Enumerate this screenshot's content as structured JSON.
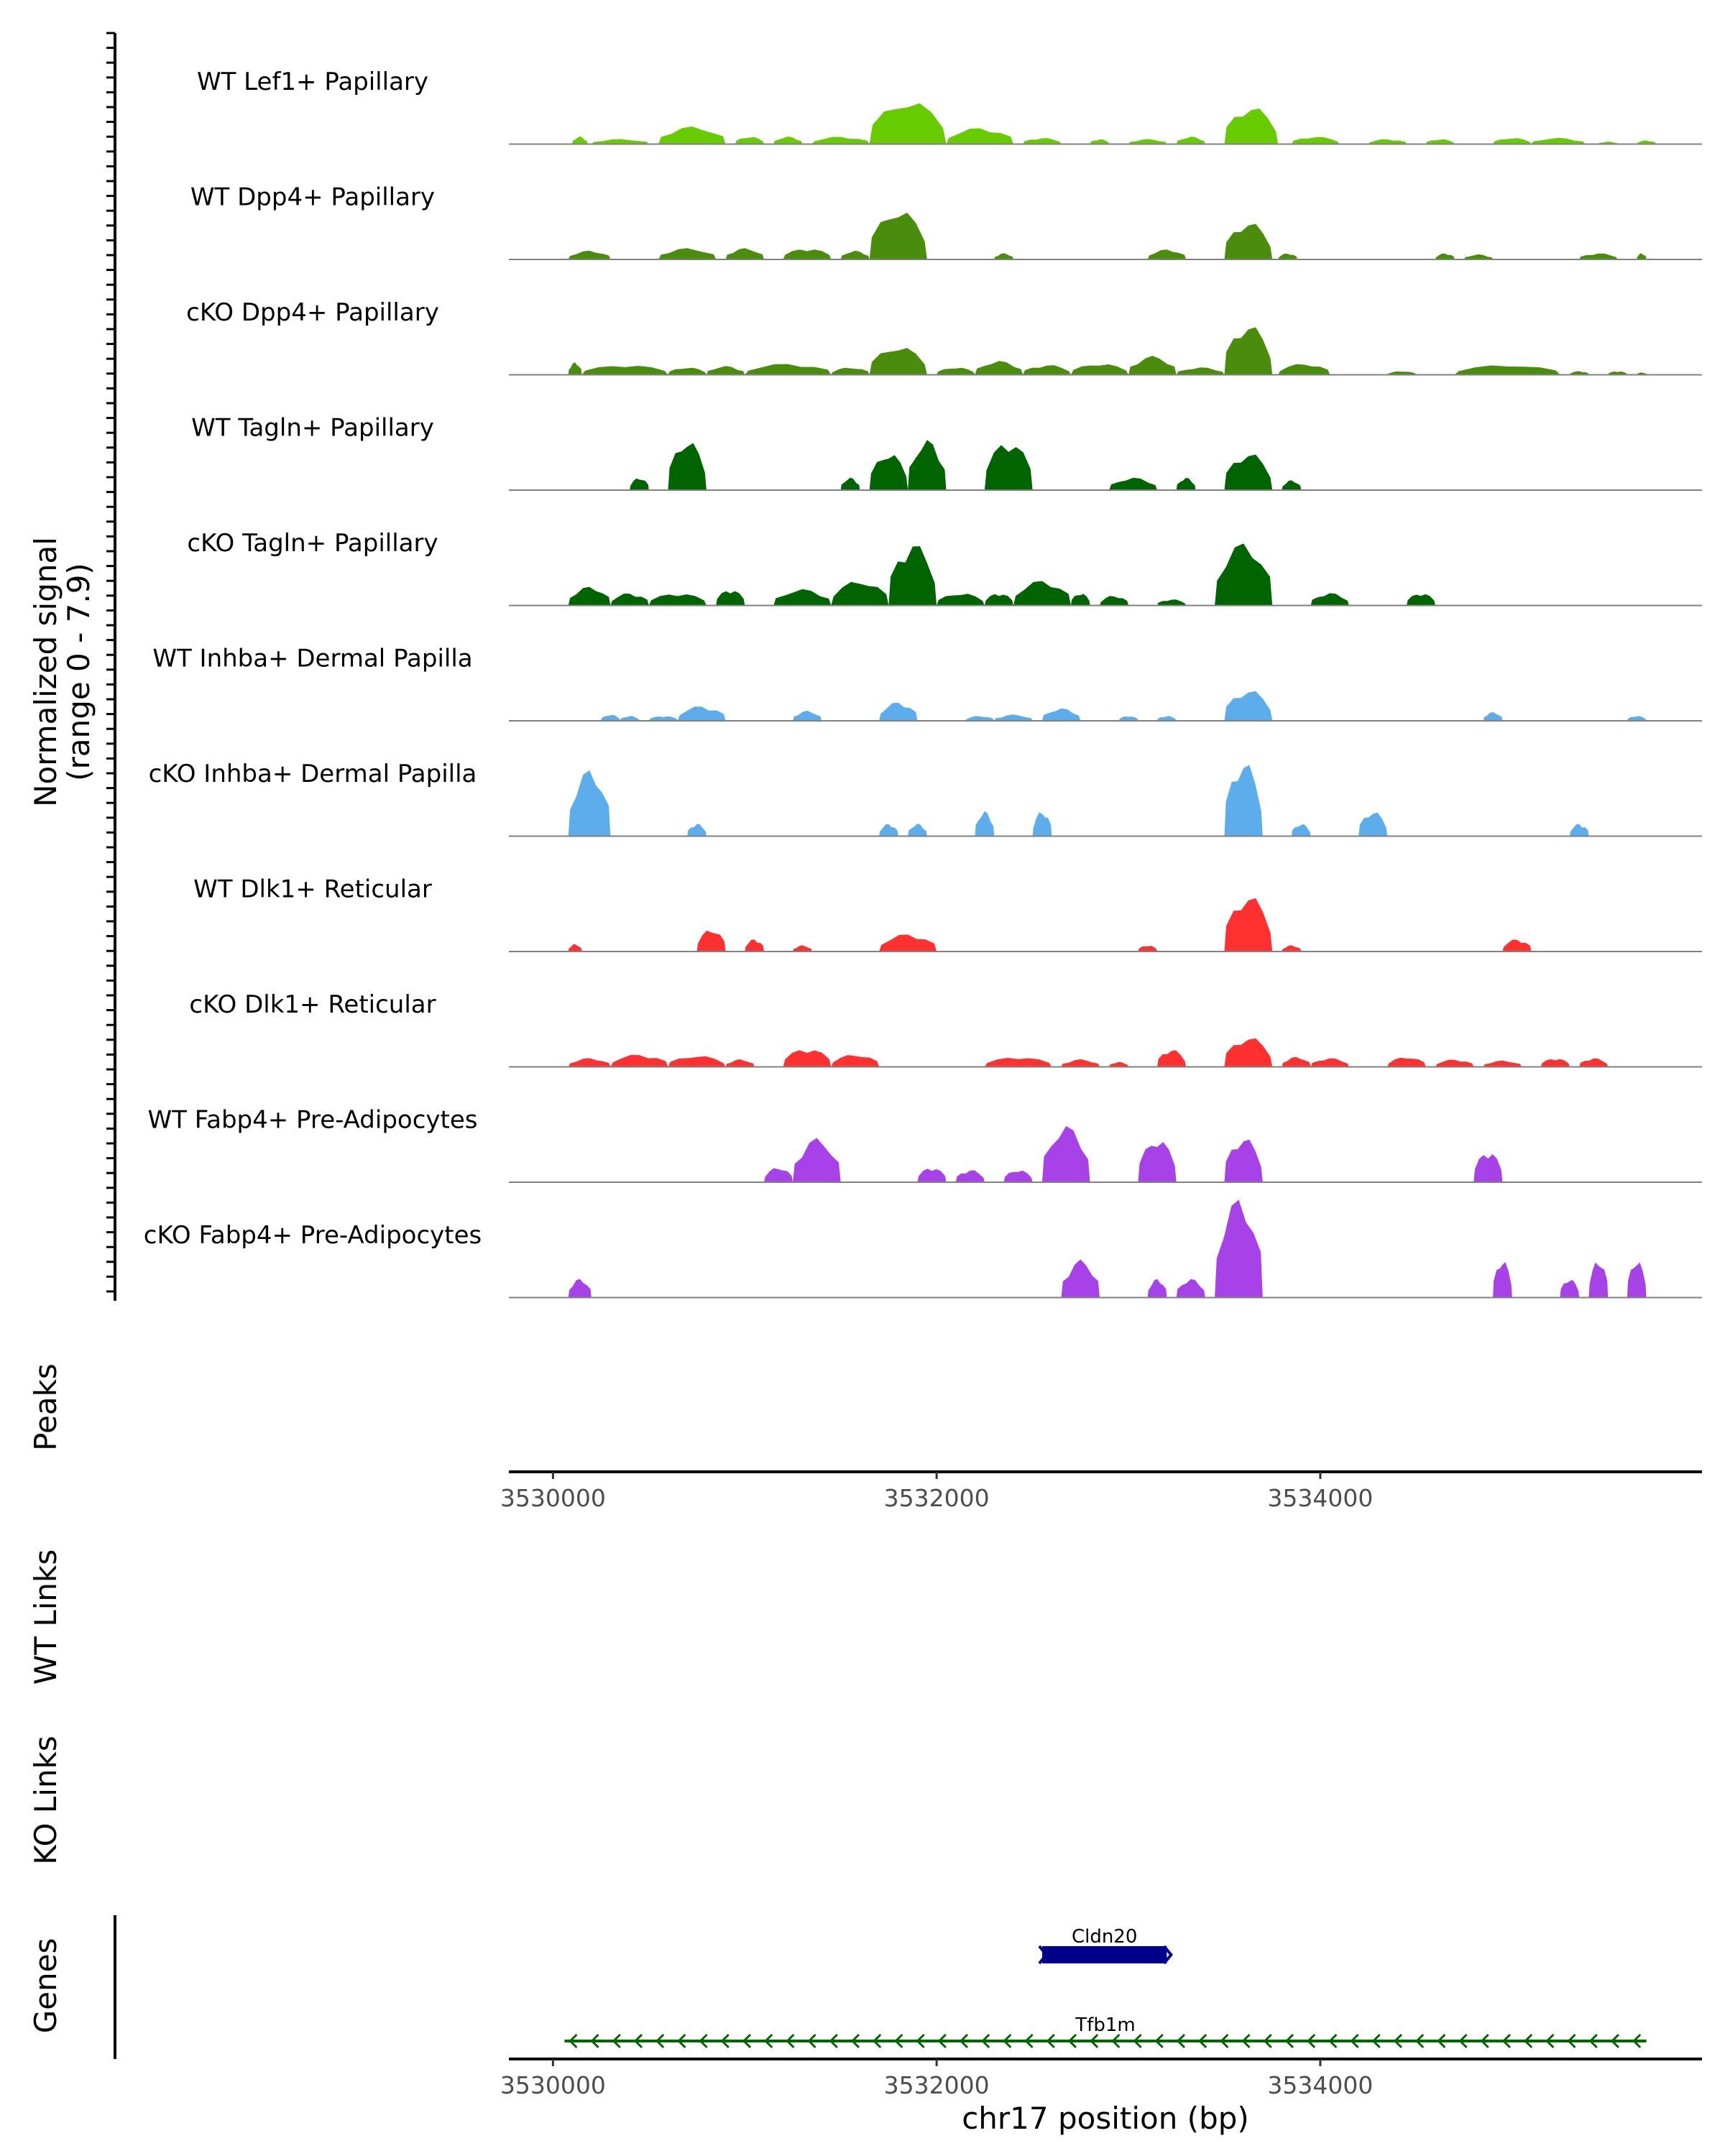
{
  "chart_data": {
    "type": "area",
    "title": "",
    "region": "chr17",
    "xlabel": "chr17 position (bp)",
    "ylabel": "Normalized signal",
    "ylabel_range": "(range 0 - 7.9)",
    "ylim": [
      0,
      7.9
    ],
    "xlim": [
      3529770,
      3535990
    ],
    "x_ticks": [
      3530000,
      3532000,
      3534000
    ],
    "x_tick_labels": [
      "3530000",
      "3532000",
      "3534000"
    ],
    "panel_labels": {
      "peaks": "Peaks",
      "wt_links": "WT Links",
      "ko_links": "KO Links",
      "genes": "Genes"
    },
    "tracks": [
      {
        "name": "WT Lef1+ Papillary",
        "color": "#66CC00",
        "peaks": [
          [
            3530100,
            3530180,
            0.6
          ],
          [
            3530200,
            3530500,
            0.4
          ],
          [
            3530550,
            3530900,
            1.4
          ],
          [
            3530950,
            3531100,
            0.6
          ],
          [
            3531150,
            3531300,
            0.6
          ],
          [
            3531350,
            3531650,
            0.6
          ],
          [
            3531650,
            3532050,
            3.5
          ],
          [
            3532050,
            3532400,
            1.3
          ],
          [
            3532450,
            3532650,
            0.5
          ],
          [
            3532800,
            3532900,
            0.4
          ],
          [
            3533000,
            3533200,
            0.4
          ],
          [
            3533250,
            3533400,
            0.6
          ],
          [
            3533500,
            3533780,
            3.0
          ],
          [
            3533850,
            3534100,
            0.6
          ],
          [
            3534250,
            3534450,
            0.4
          ],
          [
            3534550,
            3534700,
            0.4
          ],
          [
            3534900,
            3535100,
            0.5
          ],
          [
            3535100,
            3535380,
            0.5
          ],
          [
            3535450,
            3535550,
            0.2
          ],
          [
            3535650,
            3535750,
            0.3
          ]
        ]
      },
      {
        "name": "WT Dpp4+ Papillary",
        "color": "#4A8C0B",
        "peaks": [
          [
            3530080,
            3530300,
            0.7
          ],
          [
            3530550,
            3530850,
            0.9
          ],
          [
            3530900,
            3531100,
            0.9
          ],
          [
            3531200,
            3531450,
            0.9
          ],
          [
            3531500,
            3531650,
            0.7
          ],
          [
            3531650,
            3531950,
            4.0
          ],
          [
            3532300,
            3532400,
            0.5
          ],
          [
            3533100,
            3533300,
            0.8
          ],
          [
            3533500,
            3533750,
            3.0
          ],
          [
            3533780,
            3533880,
            0.5
          ],
          [
            3534600,
            3534700,
            0.5
          ],
          [
            3534750,
            3534900,
            0.4
          ],
          [
            3535350,
            3535550,
            0.5
          ],
          [
            3535650,
            3535700,
            0.5
          ]
        ]
      },
      {
        "name": "cKO Dpp4+ Papillary",
        "color": "#4A8C0B",
        "peaks": [
          [
            3530080,
            3530150,
            1.0
          ],
          [
            3530150,
            3530600,
            0.8
          ],
          [
            3530600,
            3530800,
            0.6
          ],
          [
            3530800,
            3531000,
            0.7
          ],
          [
            3531000,
            3531450,
            0.9
          ],
          [
            3531450,
            3531650,
            0.6
          ],
          [
            3531650,
            3531950,
            2.3
          ],
          [
            3532000,
            3532200,
            0.6
          ],
          [
            3532200,
            3532450,
            1.1
          ],
          [
            3532450,
            3532700,
            0.8
          ],
          [
            3532700,
            3533000,
            0.9
          ],
          [
            3533000,
            3533250,
            1.5
          ],
          [
            3533250,
            3533500,
            0.6
          ],
          [
            3533500,
            3533750,
            4.0
          ],
          [
            3533780,
            3534050,
            0.9
          ],
          [
            3534350,
            3534500,
            0.3
          ],
          [
            3534700,
            3535250,
            0.8
          ],
          [
            3535300,
            3535400,
            0.3
          ],
          [
            3535500,
            3535600,
            0.3
          ],
          [
            3535650,
            3535700,
            0.2
          ]
        ]
      },
      {
        "name": "WT Tagln+ Papillary",
        "color": "#006400",
        "peaks": [
          [
            3530400,
            3530500,
            1.0
          ],
          [
            3530600,
            3530800,
            4.0
          ],
          [
            3531500,
            3531600,
            1.0
          ],
          [
            3531650,
            3531850,
            3.0
          ],
          [
            3531850,
            3532050,
            4.0
          ],
          [
            3532250,
            3532500,
            4.0
          ],
          [
            3532900,
            3533150,
            1.0
          ],
          [
            3533250,
            3533350,
            1.0
          ],
          [
            3533500,
            3533750,
            3.0
          ],
          [
            3533800,
            3533900,
            0.8
          ]
        ]
      },
      {
        "name": "cKO Tagln+ Papillary",
        "color": "#006400",
        "peaks": [
          [
            3530080,
            3530300,
            1.5
          ],
          [
            3530300,
            3530500,
            1.0
          ],
          [
            3530500,
            3530800,
            1.0
          ],
          [
            3530850,
            3531000,
            1.3
          ],
          [
            3531150,
            3531450,
            1.3
          ],
          [
            3531450,
            3531750,
            2.0
          ],
          [
            3531750,
            3532000,
            5.0
          ],
          [
            3532000,
            3532250,
            1.0
          ],
          [
            3532250,
            3532400,
            1.0
          ],
          [
            3532400,
            3532700,
            2.0
          ],
          [
            3532700,
            3532800,
            1.0
          ],
          [
            3532850,
            3533000,
            0.8
          ],
          [
            3533150,
            3533300,
            0.5
          ],
          [
            3533450,
            3533750,
            5.0
          ],
          [
            3533950,
            3534150,
            1.0
          ],
          [
            3534450,
            3534600,
            1.0
          ]
        ]
      },
      {
        "name": "WT Inhba+ Dermal Papilla",
        "color": "#5DADEC",
        "peaks": [
          [
            3530250,
            3530350,
            0.5
          ],
          [
            3530350,
            3530450,
            0.4
          ],
          [
            3530500,
            3530650,
            0.4
          ],
          [
            3530650,
            3530900,
            1.2
          ],
          [
            3531250,
            3531400,
            0.8
          ],
          [
            3531700,
            3531900,
            1.5
          ],
          [
            3532150,
            3532300,
            0.4
          ],
          [
            3532300,
            3532500,
            0.5
          ],
          [
            3532550,
            3532750,
            1.0
          ],
          [
            3532950,
            3533050,
            0.4
          ],
          [
            3533150,
            3533250,
            0.4
          ],
          [
            3533500,
            3533750,
            2.5
          ],
          [
            3534850,
            3534950,
            0.7
          ],
          [
            3535600,
            3535700,
            0.4
          ]
        ]
      },
      {
        "name": "cKO Inhba+ Dermal Papilla",
        "color": "#5DADEC",
        "peaks": [
          [
            3530080,
            3530300,
            5.3
          ],
          [
            3530700,
            3530800,
            1.0
          ],
          [
            3531700,
            3531800,
            1.0
          ],
          [
            3531850,
            3531950,
            1.0
          ],
          [
            3532200,
            3532300,
            2.0
          ],
          [
            3532500,
            3532600,
            2.0
          ],
          [
            3533500,
            3533700,
            6.0
          ],
          [
            3533850,
            3533950,
            1.0
          ],
          [
            3534200,
            3534350,
            2.0
          ],
          [
            3535300,
            3535400,
            1.0
          ]
        ]
      },
      {
        "name": "WT Dlk1+ Reticular",
        "color": "#FF3030",
        "peaks": [
          [
            3530080,
            3530150,
            0.6
          ],
          [
            3530750,
            3530900,
            1.8
          ],
          [
            3531000,
            3531100,
            1.0
          ],
          [
            3531250,
            3531350,
            0.5
          ],
          [
            3531700,
            3532000,
            1.4
          ],
          [
            3533050,
            3533150,
            0.5
          ],
          [
            3533500,
            3533750,
            4.5
          ],
          [
            3533800,
            3533900,
            0.5
          ],
          [
            3534950,
            3535100,
            1.0
          ]
        ]
      },
      {
        "name": "cKO Dlk1+ Reticular",
        "color": "#FF3030",
        "peaks": [
          [
            3530080,
            3530300,
            0.7
          ],
          [
            3530300,
            3530600,
            1.0
          ],
          [
            3530600,
            3530900,
            0.9
          ],
          [
            3530900,
            3531050,
            0.6
          ],
          [
            3531200,
            3531450,
            1.5
          ],
          [
            3531450,
            3531700,
            1.0
          ],
          [
            3532250,
            3532600,
            0.8
          ],
          [
            3532650,
            3532850,
            0.6
          ],
          [
            3532900,
            3533000,
            0.4
          ],
          [
            3533150,
            3533300,
            1.4
          ],
          [
            3533500,
            3533750,
            2.4
          ],
          [
            3533800,
            3533950,
            0.8
          ],
          [
            3533950,
            3534150,
            0.7
          ],
          [
            3534350,
            3534550,
            0.8
          ],
          [
            3534600,
            3534800,
            0.6
          ],
          [
            3534850,
            3535050,
            0.5
          ],
          [
            3535150,
            3535300,
            0.7
          ],
          [
            3535350,
            3535500,
            0.7
          ]
        ]
      },
      {
        "name": "WT Fabp4+ Pre-Adipocytes",
        "color": "#A742E8",
        "peaks": [
          [
            3531100,
            3531250,
            1.2
          ],
          [
            3531250,
            3531500,
            3.5
          ],
          [
            3531900,
            3532050,
            1.2
          ],
          [
            3532100,
            3532250,
            1.0
          ],
          [
            3532350,
            3532500,
            1.0
          ],
          [
            3532550,
            3532800,
            4.5
          ],
          [
            3533050,
            3533250,
            3.5
          ],
          [
            3533500,
            3533700,
            3.6
          ],
          [
            3534800,
            3534950,
            2.5
          ]
        ]
      },
      {
        "name": "cKO Fabp4+ Pre-Adipocytes",
        "color": "#A742E8",
        "peaks": [
          [
            3530080,
            3530200,
            1.5
          ],
          [
            3532650,
            3532850,
            3.0
          ],
          [
            3533100,
            3533200,
            1.5
          ],
          [
            3533250,
            3533400,
            1.5
          ],
          [
            3533450,
            3533700,
            7.9
          ],
          [
            3534900,
            3535000,
            3.0
          ],
          [
            3535250,
            3535350,
            1.5
          ],
          [
            3535400,
            3535500,
            3.0
          ],
          [
            3535600,
            3535700,
            3.0
          ]
        ]
      }
    ],
    "genes": [
      {
        "name": "Cldn20",
        "start": 3532550,
        "end": 3533200,
        "strand": "+",
        "color": "#00008B",
        "style": "exon"
      },
      {
        "name": "Tfb1m",
        "start": 3530060,
        "end": 3535700,
        "strand": "-",
        "color": "#006400",
        "style": "intron"
      }
    ]
  }
}
